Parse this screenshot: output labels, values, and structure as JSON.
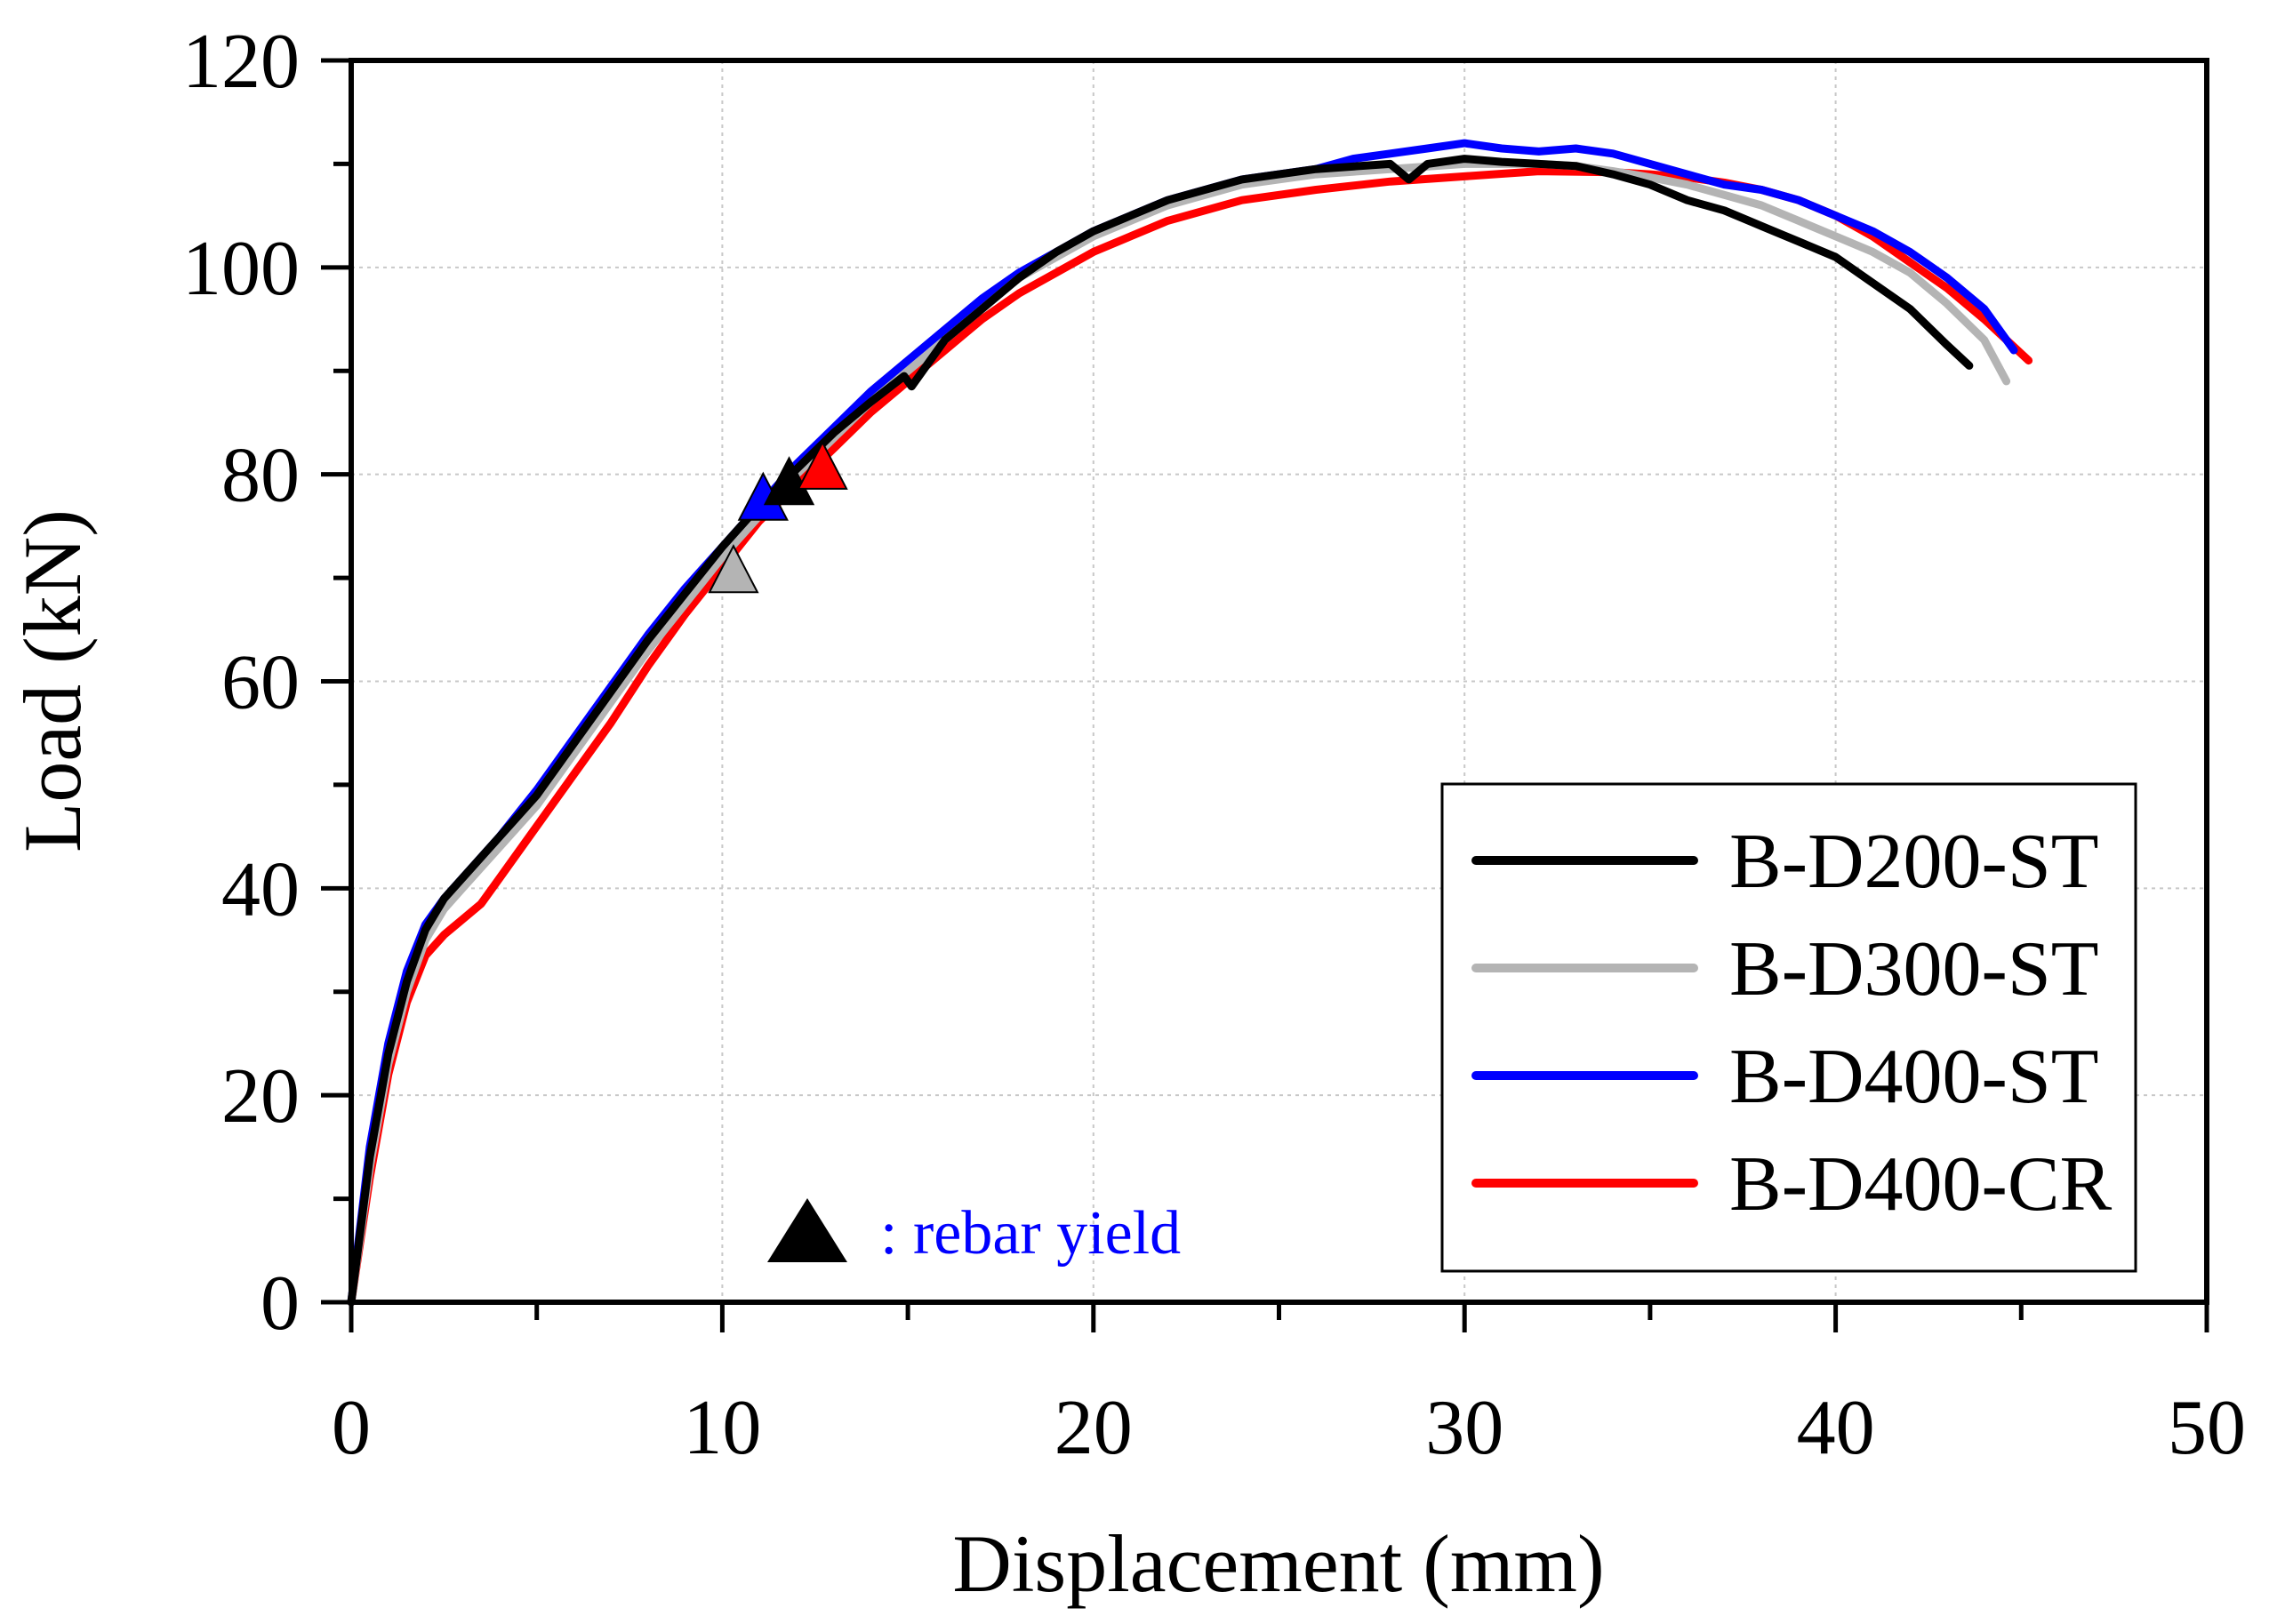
{
  "chart_data": {
    "type": "line",
    "title": "",
    "xlabel": "Displacement (mm)",
    "ylabel": "Load (kN)",
    "xlim": [
      0,
      50
    ],
    "ylim": [
      0,
      120
    ],
    "x_ticks": [
      "0",
      "10",
      "20",
      "30",
      "40",
      "50"
    ],
    "y_ticks": [
      "0",
      "20",
      "40",
      "60",
      "80",
      "100",
      "120"
    ],
    "grid": true,
    "legend_position": "bottom-right",
    "series": [
      {
        "name": "B-D200-ST",
        "color": "#000000",
        "x": [
          0,
          0.5,
          1,
          1.5,
          2,
          2.5,
          3,
          4,
          5,
          6,
          7,
          8,
          9,
          10,
          11,
          12,
          13,
          14,
          14.9,
          15.1,
          16,
          17,
          18,
          19,
          20,
          22,
          24,
          26,
          28,
          28.5,
          29,
          30,
          31,
          32,
          33,
          34,
          35,
          36,
          37,
          38,
          39,
          40,
          41,
          42,
          43,
          43.6
        ],
        "y": [
          0,
          14,
          24,
          31,
          36,
          39,
          41,
          45,
          49,
          54,
          59,
          64,
          68.5,
          73,
          77,
          80.5,
          84,
          87,
          89.5,
          88.5,
          93,
          96,
          99,
          101.5,
          103.5,
          106.5,
          108.5,
          109.5,
          110,
          108.5,
          110,
          110.5,
          110.2,
          110,
          109.8,
          109,
          108,
          106.5,
          105.5,
          104,
          102.5,
          101,
          98.5,
          96,
          92.5,
          90.5
        ]
      },
      {
        "name": "B-D300-ST",
        "color": "#b4b4b4",
        "x": [
          0,
          0.5,
          1,
          1.5,
          2,
          2.5,
          3,
          4,
          5,
          6,
          7,
          8,
          9,
          10,
          11,
          12,
          13,
          14,
          15,
          16,
          17,
          18,
          19,
          20,
          22,
          24,
          26,
          28,
          30,
          32,
          33,
          34,
          35,
          36,
          37,
          38,
          39,
          40,
          41,
          42,
          43,
          44,
          44.6
        ],
        "y": [
          0,
          13,
          23,
          30,
          35,
          38,
          40,
          44,
          48,
          53,
          58,
          63,
          67.5,
          72,
          76,
          80,
          83.5,
          87,
          90,
          93,
          96,
          99,
          101,
          103,
          106,
          108,
          109,
          109.5,
          110,
          110,
          109.8,
          109.3,
          108.7,
          108,
          107,
          106,
          104.5,
          103,
          101.5,
          99.5,
          96.5,
          93,
          89
        ]
      },
      {
        "name": "B-D400-ST",
        "color": "#0000ff",
        "x": [
          0,
          0.5,
          1,
          1.5,
          2,
          2.5,
          3,
          4,
          5,
          6,
          7,
          8,
          9,
          10,
          11,
          12,
          13,
          14,
          15,
          16,
          17,
          18,
          19,
          20,
          22,
          24,
          26,
          27,
          28,
          29,
          30,
          31,
          32,
          33,
          34,
          35,
          36,
          37,
          38,
          39,
          40,
          41,
          42,
          43,
          44,
          44.8
        ],
        "y": [
          0,
          15,
          25,
          32,
          36.5,
          39,
          41,
          45,
          49.5,
          54.5,
          59.5,
          64.5,
          69,
          73,
          77,
          81,
          84.5,
          88,
          91,
          94,
          97,
          99.5,
          101.5,
          103.5,
          106.5,
          108.5,
          109.5,
          110.5,
          111,
          111.5,
          112,
          111.5,
          111.2,
          111.5,
          111,
          110,
          109,
          108,
          107.5,
          106.5,
          105,
          103.5,
          101.5,
          99,
          96,
          92
        ]
      },
      {
        "name": "B-D400-CR",
        "color": "#ff0000",
        "x": [
          0,
          0.5,
          1,
          1.5,
          2,
          2.5,
          3,
          3.5,
          4,
          5,
          6,
          7,
          8,
          9,
          10,
          11,
          12,
          13,
          14,
          15,
          16,
          17,
          18,
          19,
          20,
          22,
          24,
          26,
          28,
          30,
          32,
          34,
          35,
          36,
          37,
          38,
          39,
          40,
          41,
          42,
          43,
          44,
          45.2
        ],
        "y": [
          0,
          12,
          22,
          29,
          33.5,
          35.5,
          37,
          38.5,
          41,
          46,
          51,
          56,
          61.5,
          66.5,
          71,
          75.5,
          79,
          82.5,
          86,
          89,
          92,
          95,
          97.5,
          99.5,
          101.5,
          104.5,
          106.5,
          107.5,
          108.3,
          108.8,
          109.3,
          109.2,
          109,
          108.7,
          108.2,
          107.5,
          106.5,
          105,
          103,
          100.5,
          98,
          95,
          91
        ]
      }
    ],
    "yield_points": [
      {
        "series": "B-D300-ST",
        "x": 10.3,
        "y": 70.5,
        "color": "#b4b4b4"
      },
      {
        "series": "B-D400-ST",
        "x": 11.1,
        "y": 77.5,
        "color": "#0000ff"
      },
      {
        "series": "B-D200-ST",
        "x": 11.8,
        "y": 79,
        "color": "#000000"
      },
      {
        "series": "B-D400-CR",
        "x": 12.7,
        "y": 80.5,
        "color": "#ff0000"
      }
    ],
    "annotation": {
      "marker_color": "#000000",
      "text": ": rebar yield",
      "text_color": "#0000ff"
    }
  }
}
